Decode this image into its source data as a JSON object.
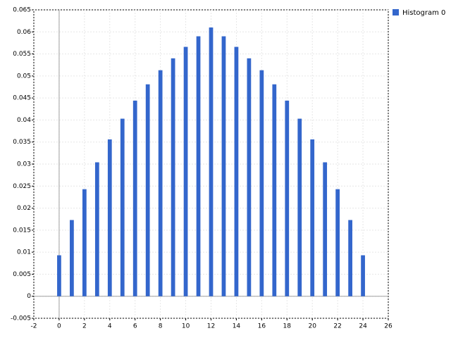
{
  "chart_data": {
    "type": "bar",
    "x": [
      0,
      1,
      2,
      3,
      4,
      5,
      6,
      7,
      8,
      9,
      10,
      11,
      12,
      13,
      14,
      15,
      16,
      17,
      18,
      19,
      20,
      21,
      22,
      23,
      24
    ],
    "series": [
      {
        "name": "Histogram 0",
        "color": "#3366cc",
        "values": [
          0.0093,
          0.0173,
          0.0243,
          0.0304,
          0.0356,
          0.0403,
          0.0444,
          0.0481,
          0.0513,
          0.054,
          0.0566,
          0.059,
          0.061,
          0.059,
          0.0566,
          0.054,
          0.0513,
          0.0481,
          0.0444,
          0.0403,
          0.0356,
          0.0304,
          0.0243,
          0.0173,
          0.0093
        ]
      }
    ],
    "xlim": [
      -2,
      26
    ],
    "xticks": [
      -2,
      0,
      2,
      4,
      6,
      8,
      10,
      12,
      14,
      16,
      18,
      20,
      22,
      24,
      26
    ],
    "ylim": [
      -0.005,
      0.065
    ],
    "yticks": [
      -0.005,
      0,
      0.005,
      0.01,
      0.015,
      0.02,
      0.025,
      0.03,
      0.035,
      0.04,
      0.045,
      0.05,
      0.055,
      0.06,
      0.065
    ],
    "grid": true,
    "legend": "right"
  }
}
